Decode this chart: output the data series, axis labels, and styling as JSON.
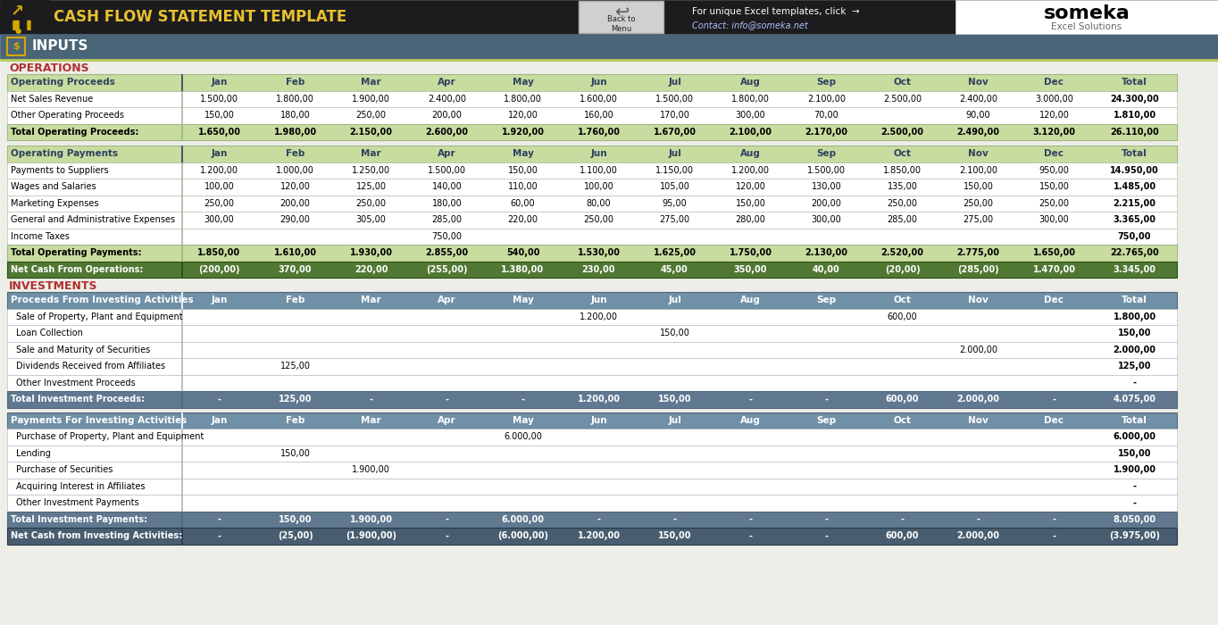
{
  "title": "CASH FLOW STATEMENT TEMPLATE",
  "subtitle": "INPUTS",
  "colors": {
    "header_bg": "#1c1c1e",
    "subheader_bg": "#4a6478",
    "light_green_header": "#c8dca0",
    "light_green_total": "#a8c878",
    "net_green": "#507832",
    "blue_header": "#7090a8",
    "blue_total": "#607890",
    "net_blue": "#485e70",
    "white": "#ffffff",
    "bg": "#eeeee8",
    "section_red": "#b03030",
    "col_text_dark": "#304060",
    "gold": "#d4a800",
    "row_border": "#a0b888",
    "blue_border": "#506878"
  },
  "months": [
    "Jan",
    "Feb",
    "Mar",
    "Apr",
    "May",
    "Jun",
    "Jul",
    "Aug",
    "Sep",
    "Oct",
    "Nov",
    "Dec",
    "Total"
  ],
  "op_proceeds_header": "Operating Proceeds",
  "op_proceeds_rows": [
    {
      "label": "Net Sales Revenue",
      "values": [
        "1.500,00",
        "1.800,00",
        "1.900,00",
        "2.400,00",
        "1.800,00",
        "1.600,00",
        "1.500,00",
        "1.800,00",
        "2.100,00",
        "2.500,00",
        "2.400,00",
        "3.000,00",
        "24.300,00"
      ]
    },
    {
      "label": "Other Operating Proceeds",
      "values": [
        "150,00",
        "180,00",
        "250,00",
        "200,00",
        "120,00",
        "160,00",
        "170,00",
        "300,00",
        "70,00",
        "",
        "90,00",
        "120,00",
        "1.810,00"
      ]
    }
  ],
  "op_proceeds_total": {
    "label": "Total Operating Proceeds:",
    "values": [
      "1.650,00",
      "1.980,00",
      "2.150,00",
      "2.600,00",
      "1.920,00",
      "1.760,00",
      "1.670,00",
      "2.100,00",
      "2.170,00",
      "2.500,00",
      "2.490,00",
      "3.120,00",
      "26.110,00"
    ]
  },
  "op_payments_header": "Operating Payments",
  "op_payments_rows": [
    {
      "label": "Payments to Suppliers",
      "values": [
        "1.200,00",
        "1.000,00",
        "1.250,00",
        "1.500,00",
        "150,00",
        "1.100,00",
        "1.150,00",
        "1.200,00",
        "1.500,00",
        "1.850,00",
        "2.100,00",
        "950,00",
        "14.950,00"
      ]
    },
    {
      "label": "Wages and Salaries",
      "values": [
        "100,00",
        "120,00",
        "125,00",
        "140,00",
        "110,00",
        "100,00",
        "105,00",
        "120,00",
        "130,00",
        "135,00",
        "150,00",
        "150,00",
        "1.485,00"
      ]
    },
    {
      "label": "Marketing Expenses",
      "values": [
        "250,00",
        "200,00",
        "250,00",
        "180,00",
        "60,00",
        "80,00",
        "95,00",
        "150,00",
        "200,00",
        "250,00",
        "250,00",
        "250,00",
        "2.215,00"
      ]
    },
    {
      "label": "General and Administrative Expenses",
      "values": [
        "300,00",
        "290,00",
        "305,00",
        "285,00",
        "220,00",
        "250,00",
        "275,00",
        "280,00",
        "300,00",
        "285,00",
        "275,00",
        "300,00",
        "3.365,00"
      ]
    },
    {
      "label": "Income Taxes",
      "values": [
        "",
        "",
        "",
        "750,00",
        "",
        "",
        "",
        "",
        "",
        "",
        "",
        "",
        "750,00"
      ]
    }
  ],
  "op_payments_total": {
    "label": "Total Operating Payments:",
    "values": [
      "1.850,00",
      "1.610,00",
      "1.930,00",
      "2.855,00",
      "540,00",
      "1.530,00",
      "1.625,00",
      "1.750,00",
      "2.130,00",
      "2.520,00",
      "2.775,00",
      "1.650,00",
      "22.765,00"
    ]
  },
  "net_cash_ops": {
    "label": "Net Cash From Operations:",
    "values": [
      "(200,00)",
      "370,00",
      "220,00",
      "(255,00)",
      "1.380,00",
      "230,00",
      "45,00",
      "350,00",
      "40,00",
      "(20,00)",
      "(285,00)",
      "1.470,00",
      "3.345,00"
    ]
  },
  "inv_proceeds_header": "Proceeds From Investing Activities",
  "inv_proceeds_rows": [
    {
      "label": "Sale of Property, Plant and Equipment",
      "values": [
        "",
        "",
        "",
        "",
        "",
        "1.200,00",
        "",
        "",
        "",
        "600,00",
        "",
        "",
        "1.800,00"
      ]
    },
    {
      "label": "Loan Collection",
      "values": [
        "",
        "",
        "",
        "",
        "",
        "",
        "150,00",
        "",
        "",
        "",
        "",
        "",
        "150,00"
      ]
    },
    {
      "label": "Sale and Maturity of Securities",
      "values": [
        "",
        "",
        "",
        "",
        "",
        "",
        "",
        "",
        "",
        "",
        "2.000,00",
        "",
        "2.000,00"
      ]
    },
    {
      "label": "Dividends Received from Affiliates",
      "values": [
        "",
        "125,00",
        "",
        "",
        "",
        "",
        "",
        "",
        "",
        "",
        "",
        "",
        "125,00"
      ]
    },
    {
      "label": "Other Investment Proceeds",
      "values": [
        "",
        "",
        "",
        "",
        "",
        "",
        "",
        "",
        "",
        "",
        "",
        "",
        "-"
      ]
    }
  ],
  "inv_proceeds_total": {
    "label": "Total Investment Proceeds:",
    "values": [
      "-",
      "125,00",
      "-",
      "-",
      "-",
      "1.200,00",
      "150,00",
      "-",
      "-",
      "600,00",
      "2.000,00",
      "-",
      "4.075,00"
    ]
  },
  "inv_payments_header": "Payments For Investing Activities",
  "inv_payments_rows": [
    {
      "label": "Purchase of Property, Plant and Equipment",
      "values": [
        "",
        "",
        "",
        "",
        "6.000,00",
        "",
        "",
        "",
        "",
        "",
        "",
        "",
        "6.000,00"
      ]
    },
    {
      "label": "Lending",
      "values": [
        "",
        "150,00",
        "",
        "",
        "",
        "",
        "",
        "",
        "",
        "",
        "",
        "",
        "150,00"
      ]
    },
    {
      "label": "Purchase of Securities",
      "values": [
        "",
        "",
        "1.900,00",
        "",
        "",
        "",
        "",
        "",
        "",
        "",
        "",
        "",
        "1.900,00"
      ]
    },
    {
      "label": "Acquiring Interest in Affiliates",
      "values": [
        "",
        "",
        "",
        "",
        "",
        "",
        "",
        "",
        "",
        "",
        "",
        "",
        "-"
      ]
    },
    {
      "label": "Other Investment Payments",
      "values": [
        "",
        "",
        "",
        "",
        "",
        "",
        "",
        "",
        "",
        "",
        "",
        "",
        "-"
      ]
    }
  ],
  "inv_payments_total": {
    "label": "Total Investment Payments:",
    "values": [
      "-",
      "150,00",
      "1.900,00",
      "-",
      "6.000,00",
      "-",
      "-",
      "-",
      "-",
      "-",
      "-",
      "-",
      "8.050,00"
    ]
  },
  "net_cash_inv": {
    "label": "Net Cash from Investing Activities:",
    "values": [
      "-",
      "(25,00)",
      "(1.900,00)",
      "-",
      "(6.000,00)",
      "1.200,00",
      "150,00",
      "-",
      "-",
      "600,00",
      "2.000,00",
      "-",
      "(3.975,00)"
    ]
  }
}
